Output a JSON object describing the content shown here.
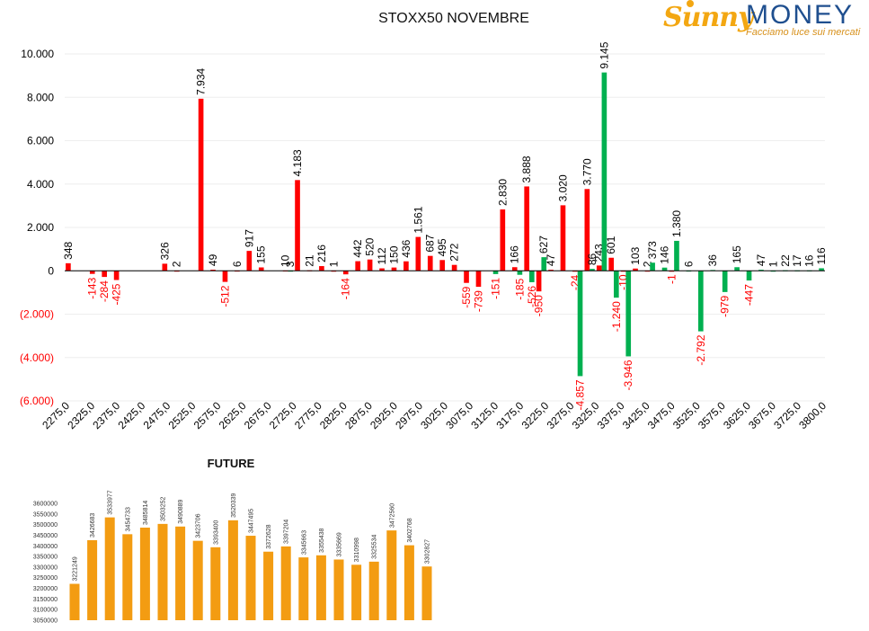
{
  "logo": {
    "sunny": "Sunny",
    "money": "MONEY",
    "tagline": "Facciamo luce sui mercati"
  },
  "colors": {
    "positive": "#ff0000",
    "negative_put": "#00b050",
    "call": "#ff0000",
    "put": "#00b050",
    "future": "#f39c12",
    "negative_label": "#ff0000"
  },
  "chart_data": [
    {
      "type": "bar",
      "title": "STOXX50 NOVEMBRE",
      "ylim": [
        -6000,
        10000
      ],
      "y_ticks": [
        "10.000",
        "8.000",
        "6.000",
        "4.000",
        "2.000",
        "0",
        "(2.000)",
        "(4.000)",
        "(6.000)"
      ],
      "x_tick_labels": [
        "2275,0",
        "2325,0",
        "2375,0",
        "2425,0",
        "2475,0",
        "2525,0",
        "2575,0",
        "2625,0",
        "2675,0",
        "2725,0",
        "2775,0",
        "2825,0",
        "2875,0",
        "2925,0",
        "2975,0",
        "3025,0",
        "3075,0",
        "3125,0",
        "3175,0",
        "3225,0",
        "3275,0",
        "3325,0",
        "3375,0",
        "3425,0",
        "3475,0",
        "3525,0",
        "3575,0",
        "3625,0",
        "3675,0",
        "3725,0",
        "3800,0"
      ],
      "series": [
        {
          "color": "#ff0000",
          "values": [
            348,
            null,
            -143,
            -284,
            -425,
            null,
            null,
            null,
            326,
            2,
            null,
            7934,
            49,
            -512,
            6,
            917,
            155,
            null,
            10,
            4183,
            21,
            216,
            1,
            -164,
            442,
            520,
            112,
            150,
            436,
            1561,
            687,
            495,
            272,
            -559,
            -739,
            null,
            2830,
            166,
            3888,
            -950,
            47,
            3020,
            -24,
            3770,
            243,
            601,
            -10,
            103,
            2,
            null,
            -1,
            null,
            null,
            null,
            null,
            null,
            null,
            null,
            null,
            null,
            null,
            null,
            null
          ],
          "labels": [
            "348",
            "",
            "-143",
            "-284",
            "-425",
            "",
            "",
            "",
            "326",
            "2",
            "",
            "7.934",
            "49",
            "-512",
            "6",
            "917",
            "155",
            "",
            "10",
            "4.183",
            "21",
            "216",
            "1",
            "-164",
            "442",
            "520",
            "112",
            "150",
            "436",
            "1.561",
            "687",
            "495",
            "272",
            "-559",
            "-739",
            "",
            "2.830",
            "166",
            "3.888",
            "-950",
            "47",
            "3.020",
            "-24",
            "3.770",
            "243",
            "601",
            "-10",
            "103",
            "2",
            "",
            "-1",
            "",
            "",
            "",
            "",
            "",
            "",
            "",
            "",
            "",
            "",
            "",
            ""
          ]
        },
        {
          "color": "#00b050",
          "values": [
            null,
            null,
            null,
            null,
            null,
            null,
            null,
            null,
            null,
            null,
            null,
            null,
            null,
            null,
            null,
            null,
            null,
            null,
            3,
            null,
            null,
            null,
            null,
            null,
            null,
            null,
            null,
            null,
            null,
            null,
            null,
            null,
            null,
            null,
            null,
            -151,
            null,
            -185,
            -526,
            627,
            null,
            null,
            -4857,
            86,
            9145,
            -1240,
            -3946,
            null,
            373,
            146,
            1380,
            6,
            -2792,
            36,
            -979,
            165,
            -447,
            47,
            1,
            22,
            17,
            16,
            116
          ],
          "labels": [
            "",
            "",
            "",
            "",
            "",
            "",
            "",
            "",
            "",
            "",
            "",
            "",
            "",
            "",
            "",
            "",
            "",
            "",
            "3",
            "",
            "",
            "",
            "",
            "",
            "",
            "",
            "",
            "",
            "",
            "",
            "",
            "",
            "",
            "",
            "",
            "-151",
            "",
            "-185",
            "-526",
            "627",
            "",
            "",
            "-4.857",
            "86",
            "9.145",
            "-1.240",
            "-3.946",
            "",
            "373",
            "146",
            "1.380",
            "6",
            "-2.792",
            "36",
            "-979",
            "165",
            "-447",
            "47",
            "1",
            "22",
            "17",
            "16",
            "116"
          ]
        }
      ]
    },
    {
      "type": "bar",
      "title": "FUTURE",
      "ylim": [
        3050000,
        3600000
      ],
      "y_ticks": [
        "3600000",
        "3550000",
        "3500000",
        "3450000",
        "3400000",
        "3350000",
        "3300000",
        "3250000",
        "3200000",
        "3150000",
        "3100000",
        "3050000"
      ],
      "values": [
        3221249,
        3426683,
        3533977,
        3454733,
        3485814,
        3503252,
        3490889,
        3423706,
        3393400,
        3520339,
        3447495,
        3372628,
        3397204,
        3345663,
        3355438,
        3335669,
        3310998,
        3325534,
        3472560,
        3402768,
        3302827
      ]
    }
  ]
}
